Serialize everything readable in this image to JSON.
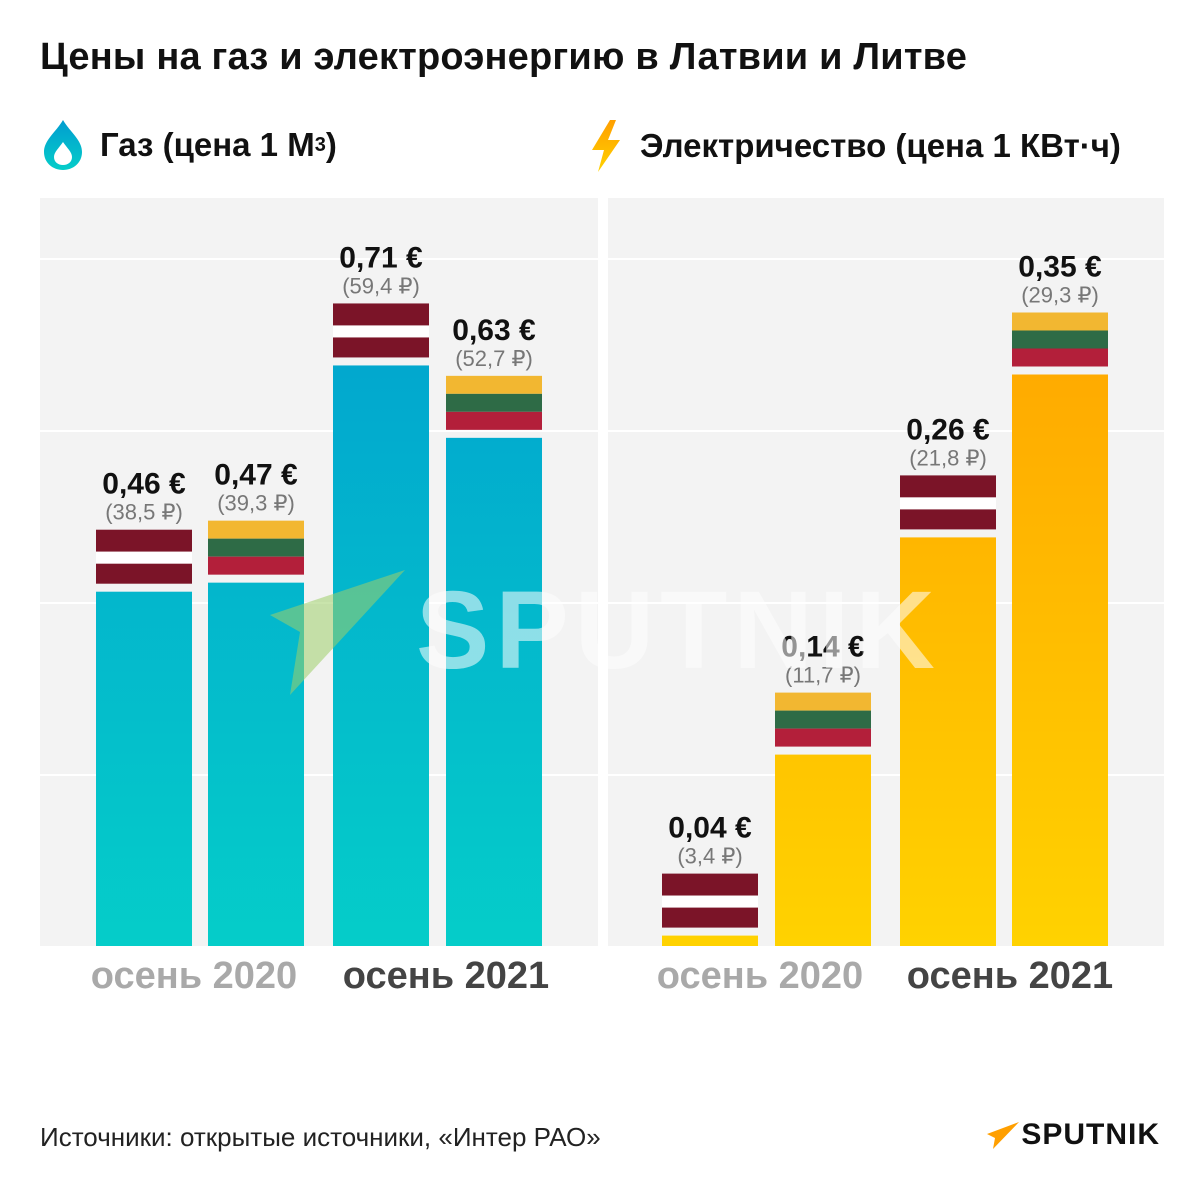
{
  "title": "Цены на газ и электроэнергию в Латвии и Литве",
  "legend": {
    "gas": "Газ (цена 1 М",
    "gas_sup": "3",
    "gas_end": ")",
    "electricity": "Электричество (цена 1 КВт·ч)"
  },
  "categories": [
    "осень 2020",
    "осень 2021"
  ],
  "source": "Источники: открытые источники, «Интер РАО»",
  "logo": "SPUTNIK",
  "watermark": "SPUTNIK",
  "colors": {
    "gas_top": "#019dd0",
    "gas_bottom": "#05cdc9",
    "el_top": "#ff9f00",
    "el_bottom": "#ffd200",
    "latvia_red": "#7b1428",
    "lithuania_yellow": "#f2b731",
    "lithuania_green": "#2e6b46",
    "lithuania_red": "#b31f3a",
    "grid": "#ffffff",
    "panel_bg": "#f3f3f3"
  },
  "chart_data": [
    {
      "type": "bar",
      "title": "Газ (цена 1 М3)",
      "categories": [
        "осень 2020",
        "осень 2021"
      ],
      "ylim": [
        0,
        0.8
      ],
      "series": [
        {
          "country": "latvia",
          "values": [
            0.46,
            0.71
          ],
          "labels": [
            "0,46 €",
            "0,71 €"
          ],
          "sublabels": [
            "(38,5 ₽)",
            "(59,4 ₽)"
          ]
        },
        {
          "country": "lithuania",
          "values": [
            0.47,
            0.63
          ],
          "labels": [
            "0,47 €",
            "0,63 €"
          ],
          "sublabels": [
            "(39,3 ₽)",
            "(52,7 ₽)"
          ]
        }
      ]
    },
    {
      "type": "bar",
      "title": "Электричество (цена 1 КВт·ч)",
      "categories": [
        "осень 2020",
        "осень 2021"
      ],
      "ylim": [
        0,
        0.4
      ],
      "series": [
        {
          "country": "latvia",
          "values": [
            0.04,
            0.26
          ],
          "labels": [
            "0,04 €",
            "0,26 €"
          ],
          "sublabels": [
            "(3,4 ₽)",
            "(21,8 ₽)"
          ]
        },
        {
          "country": "lithuania",
          "values": [
            0.14,
            0.35
          ],
          "labels": [
            "0,14 €",
            "0,35 €"
          ],
          "sublabels": [
            "(11,7 ₽)",
            "(29,3 ₽)"
          ]
        }
      ]
    }
  ]
}
